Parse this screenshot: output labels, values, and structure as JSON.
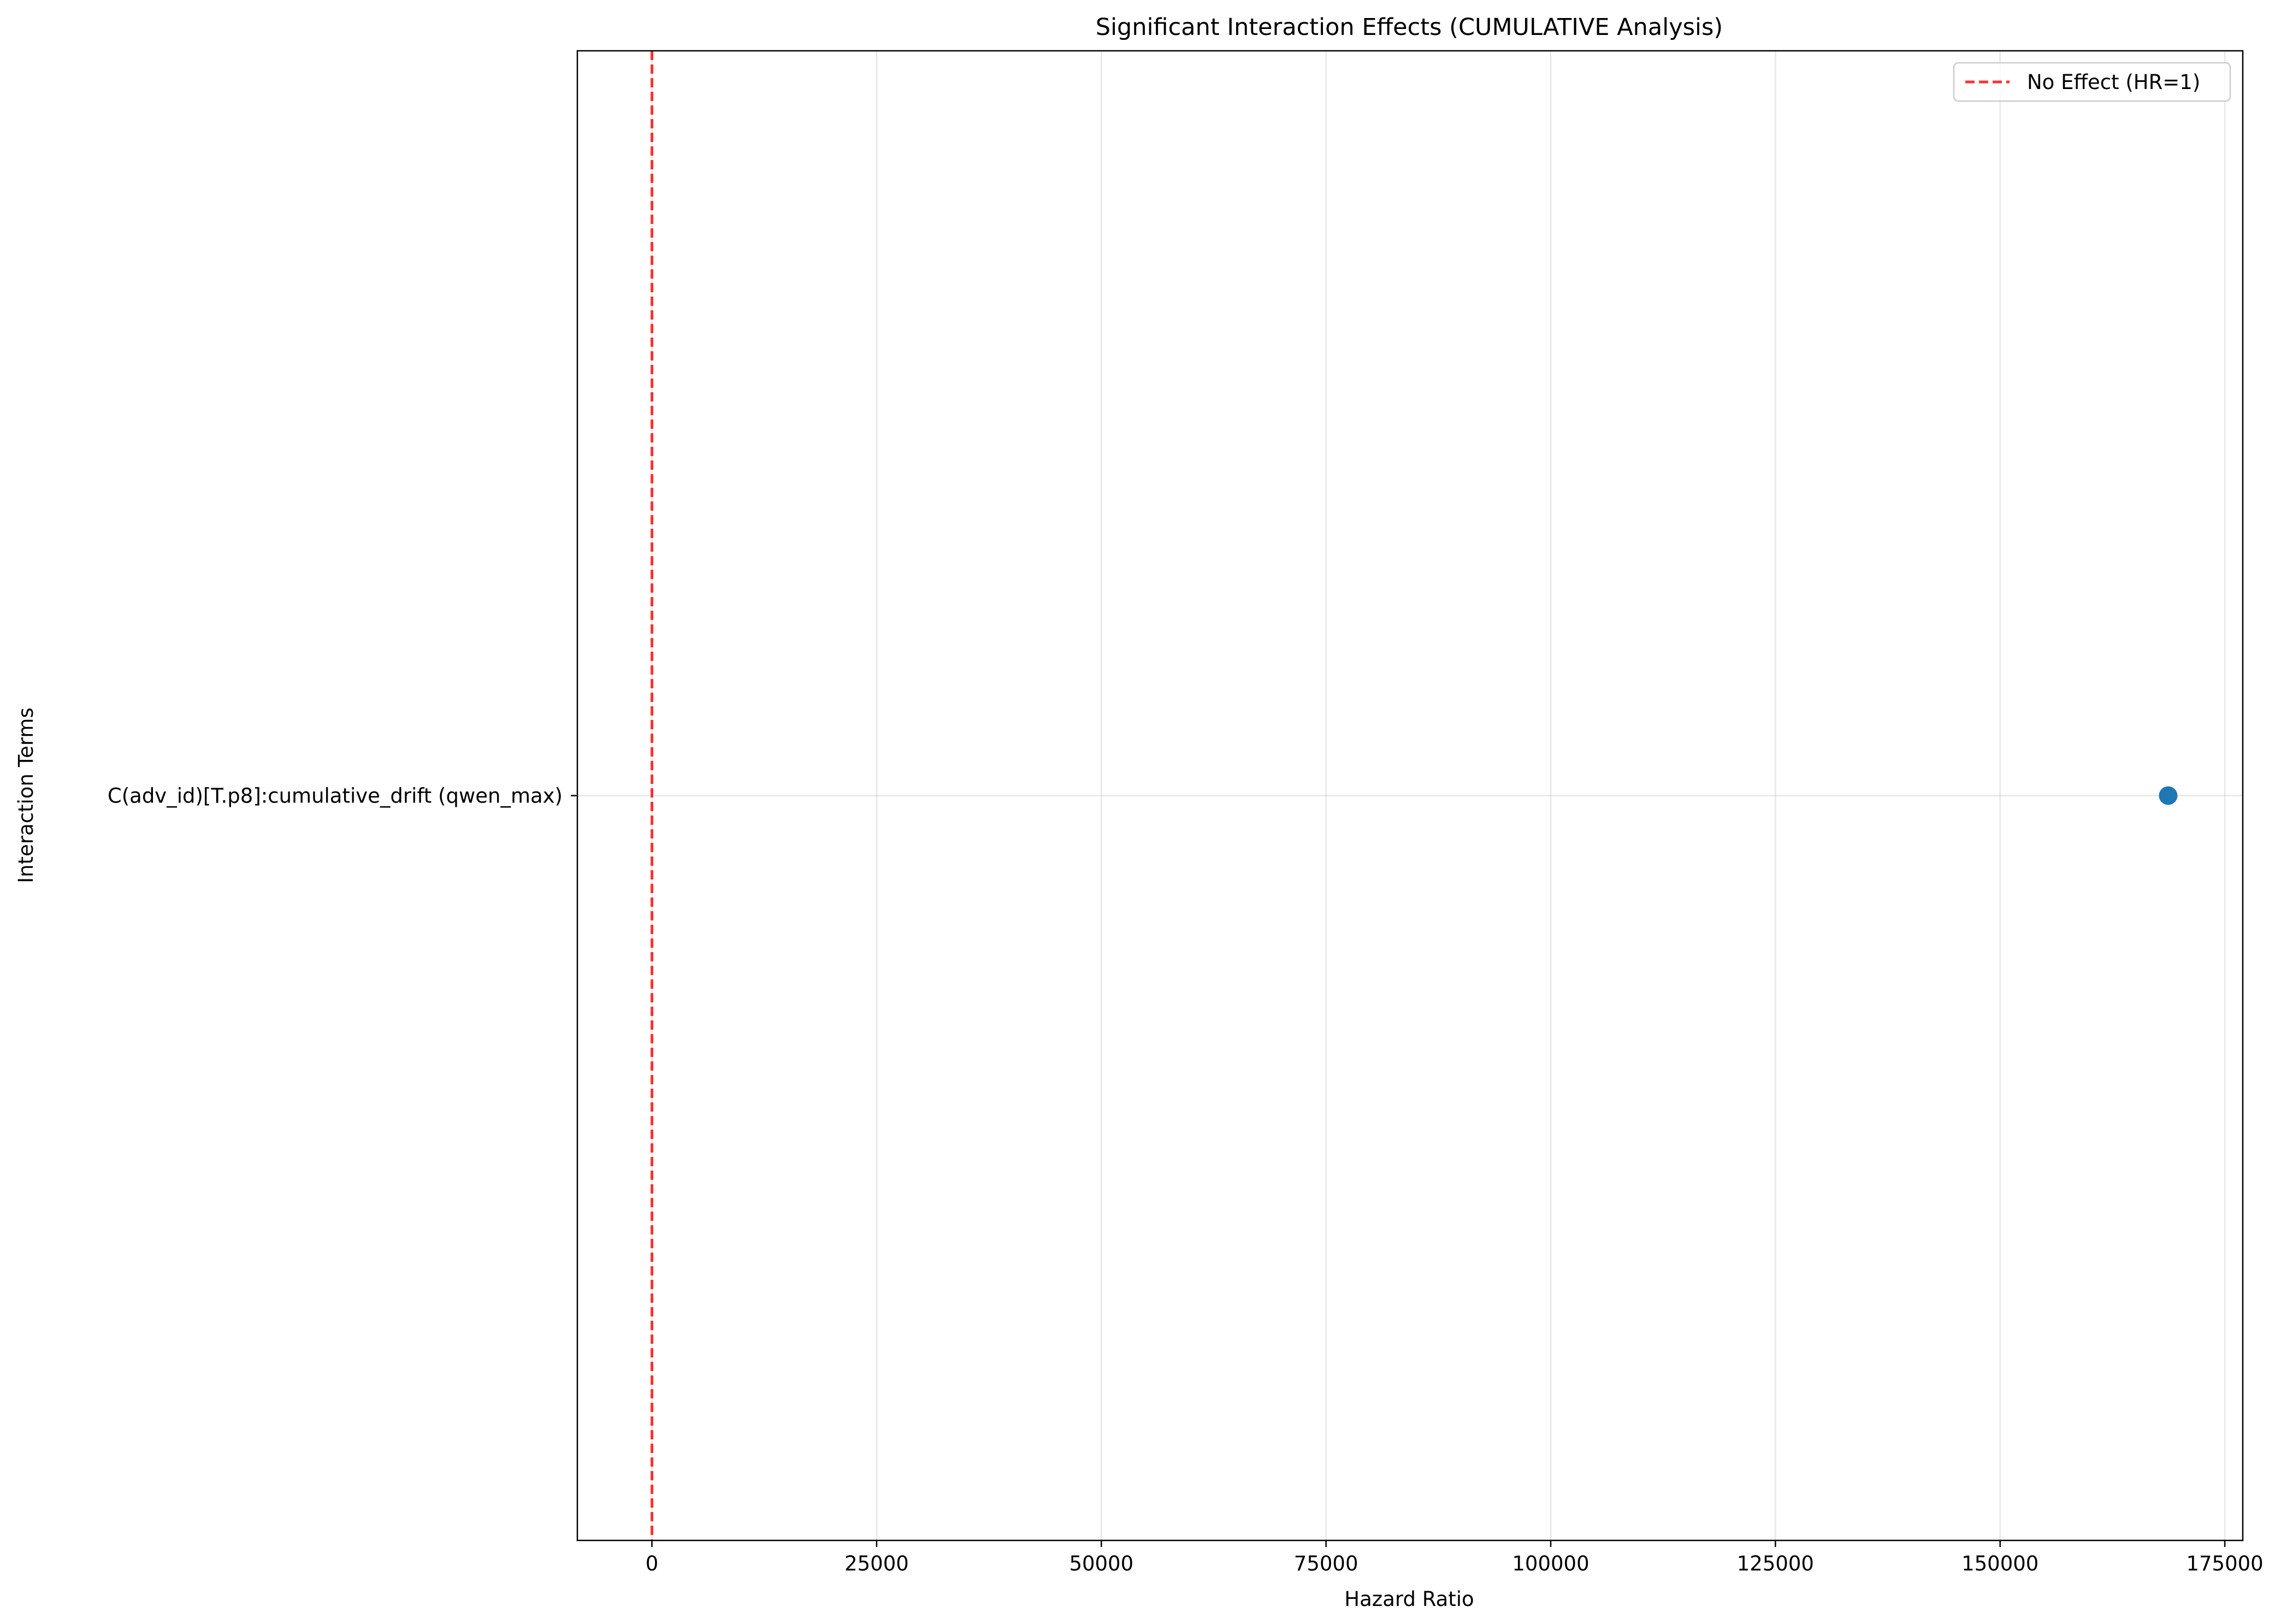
{
  "chart_data": {
    "type": "scatter",
    "title": "Significant Interaction Effects (CUMULATIVE Analysis)",
    "xlabel": "Hazard Ratio",
    "ylabel": "Interaction Terms",
    "xlim": [
      -8300,
      177000
    ],
    "x_ticks": [
      0,
      25000,
      50000,
      75000,
      100000,
      125000,
      150000,
      175000
    ],
    "x_tick_labels": [
      "0",
      "25000",
      "50000",
      "75000",
      "100000",
      "125000",
      "150000",
      "175000"
    ],
    "categories": [
      "C(adv_id)[T.p8]:cumulative_drift (qwen_max)"
    ],
    "points": [
      {
        "category": "C(adv_id)[T.p8]:cumulative_drift (qwen_max)",
        "x": 168700
      }
    ],
    "reference_line": {
      "x": 1,
      "label": "No Effect (HR=1)",
      "color": "#ff0000",
      "style": "dashed"
    },
    "point_color": "#1f77b4",
    "grid": true,
    "legend": {
      "position": "top-right",
      "entries": [
        "No Effect (HR=1)"
      ]
    }
  }
}
